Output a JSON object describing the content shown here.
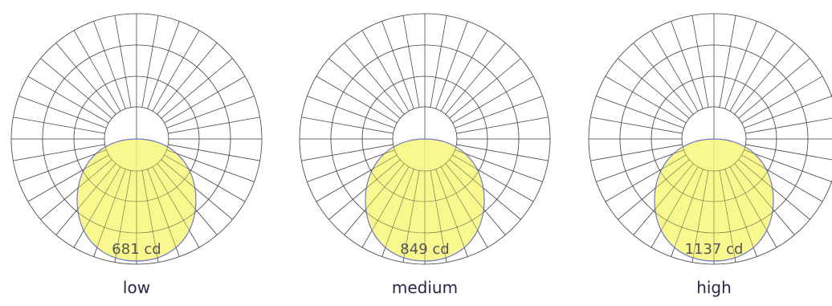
{
  "colors": {
    "grid": "#4a4a4a",
    "fill": "#f7f77a",
    "outline": "#6e78c8",
    "label": "#555555",
    "mode_text": "#2a2548"
  },
  "chart_data": [
    {
      "type": "polar",
      "mode": "low",
      "peak_label": "681 cd",
      "peak_value": 681,
      "distribution": "direct"
    },
    {
      "type": "polar",
      "mode": "medium",
      "peak_label": "849 cd",
      "peak_value": 849,
      "distribution": "direct"
    },
    {
      "type": "polar",
      "mode": "high",
      "peak_label": "1137 cd",
      "peak_value": 1137,
      "distribution": "direct"
    }
  ]
}
